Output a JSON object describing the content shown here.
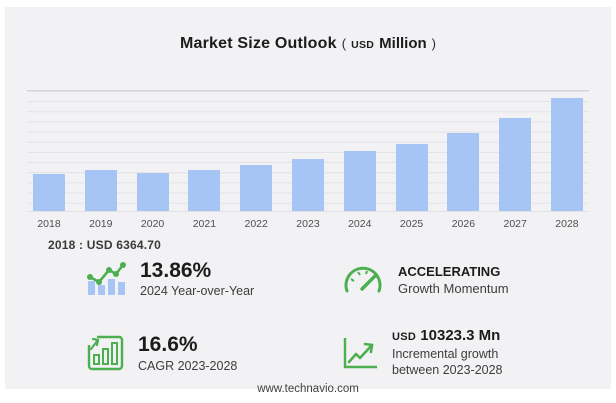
{
  "title": {
    "main": "Market Size Outlook",
    "paren_open": "(",
    "currency": "USD",
    "unit": "Million",
    "paren_close": ")"
  },
  "chart_data": {
    "type": "bar",
    "title": "Market Size Outlook (USD Million)",
    "categories": [
      "2018",
      "2019",
      "2020",
      "2021",
      "2022",
      "2023",
      "2024",
      "2025",
      "2026",
      "2027",
      "2028"
    ],
    "values": [
      6364.7,
      7000,
      6520,
      7050,
      7900,
      8959,
      10200,
      11500,
      13300,
      15850,
      19282
    ],
    "xlabel": "",
    "ylabel": "USD Million",
    "ylim": [
      0,
      20500
    ],
    "grid": true,
    "legend": "none",
    "annotation": "2018 : USD  6364.70"
  },
  "base_year_label": "2018 : USD  6364.70",
  "stats": {
    "yoy": {
      "icon": "bar-line-chart-icon",
      "value": "13.86%",
      "caption": "2024 Year-over-Year"
    },
    "momentum": {
      "icon": "speedometer-icon",
      "title": "ACCELERATING",
      "subtitle": "Growth Momentum"
    },
    "cagr": {
      "icon": "boxed-bar-growth-icon",
      "value": "16.6%",
      "caption": "CAGR 2023-2028"
    },
    "incremental": {
      "icon": "rising-arrow-chart-icon",
      "currency": "USD",
      "value": "10323.3 Mn",
      "caption_line1": "Incremental growth",
      "caption_line2": "between 2023-2028"
    }
  },
  "footer": {
    "url": "www.technavio.com"
  },
  "colors": {
    "bar": "#a6c4f4",
    "accent": "#4caf50",
    "card_background": "#f2f2f4"
  }
}
